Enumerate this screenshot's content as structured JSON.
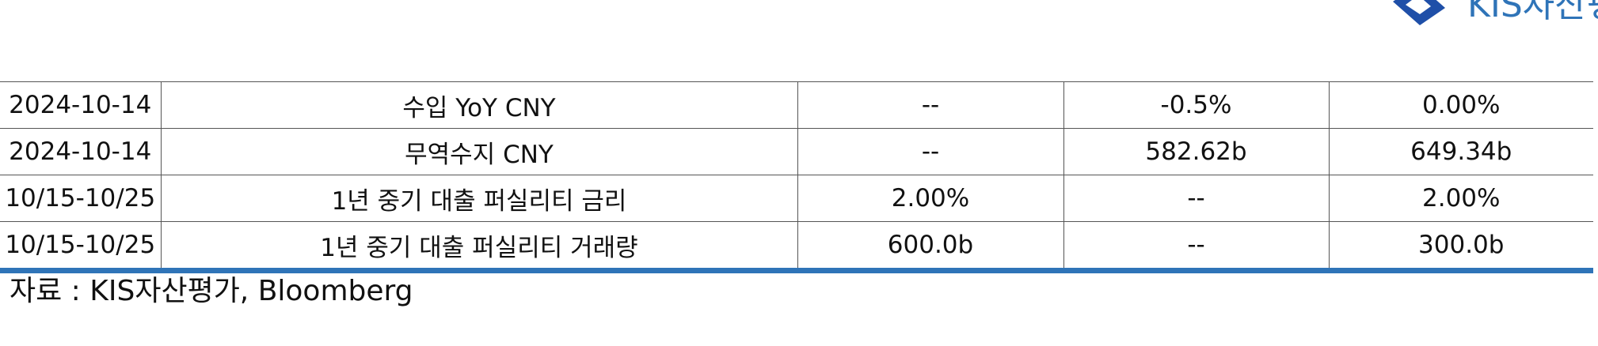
{
  "logo": {
    "text": "KIS자산평가",
    "brand_color": "#2f74b8"
  },
  "table": {
    "rows": [
      {
        "date": "2024-10-14",
        "indicator": "수입 YoY CNY",
        "col3": "--",
        "col4": "-0.5%",
        "col5": "0.00%"
      },
      {
        "date": "2024-10-14",
        "indicator": "무역수지 CNY",
        "col3": "--",
        "col4": "582.62b",
        "col5": "649.34b"
      },
      {
        "date": "10/15-10/25",
        "indicator": "1년 중기 대출 퍼실리티 금리",
        "col3": "2.00%",
        "col4": "--",
        "col5": "2.00%"
      },
      {
        "date": "10/15-10/25",
        "indicator": "1년 중기 대출 퍼실리티 거래량",
        "col3": "600.0b",
        "col4": "--",
        "col5": "300.0b"
      }
    ]
  },
  "source": "자료 : KIS자산평가, Bloomberg"
}
